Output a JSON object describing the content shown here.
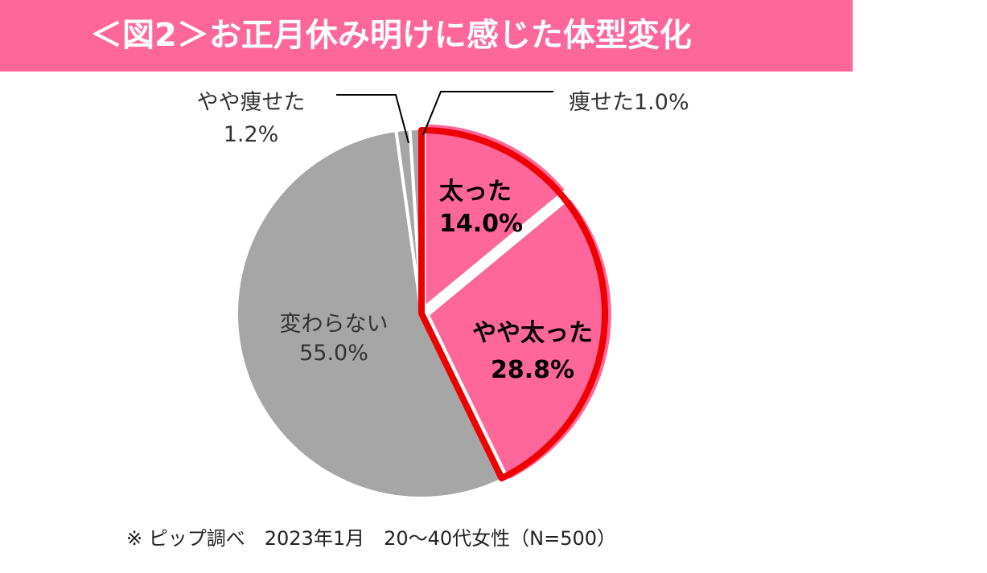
{
  "chart_data": {
    "type": "pie",
    "title": "＜図2＞お正月休み明けに感じた体型変化",
    "unit": "%",
    "slices": [
      {
        "name": "太った",
        "label_line1": "太った",
        "label_line2": "14.0%",
        "value": 14.0,
        "color": "#ff6699",
        "emphasized": true
      },
      {
        "name": "やや太った",
        "label_line1": "やや太った",
        "label_line2": "28.8%",
        "value": 28.8,
        "color": "#ff6699",
        "emphasized": true
      },
      {
        "name": "変わらない",
        "label_line1": "変わらない",
        "label_line2": "55.0%",
        "value": 55.0,
        "color": "#a6a6a6",
        "emphasized": false
      },
      {
        "name": "やや痩せた",
        "label_line1": "やや痩せた",
        "label_line2": "1.2%",
        "value": 1.2,
        "color": "#a6a6a6",
        "emphasized": false
      },
      {
        "name": "痩せた",
        "label_line1": "痩せた1.0%",
        "label_line2": "",
        "value": 1.0,
        "color": "#a6a6a6",
        "emphasized": false
      }
    ],
    "start": "12 o'clock",
    "direction": "clockwise",
    "highlight_outline_color": "#ee0000",
    "separator_color": "#ffffff"
  },
  "header": {
    "title": "＜図2＞お正月休み明けに感じた体型変化",
    "bar_color": "#ff6699",
    "text_color": "#ffffff"
  },
  "footer": {
    "note": "※ ピップ調べ　2023年1月　20～40代女性（N=500）"
  }
}
